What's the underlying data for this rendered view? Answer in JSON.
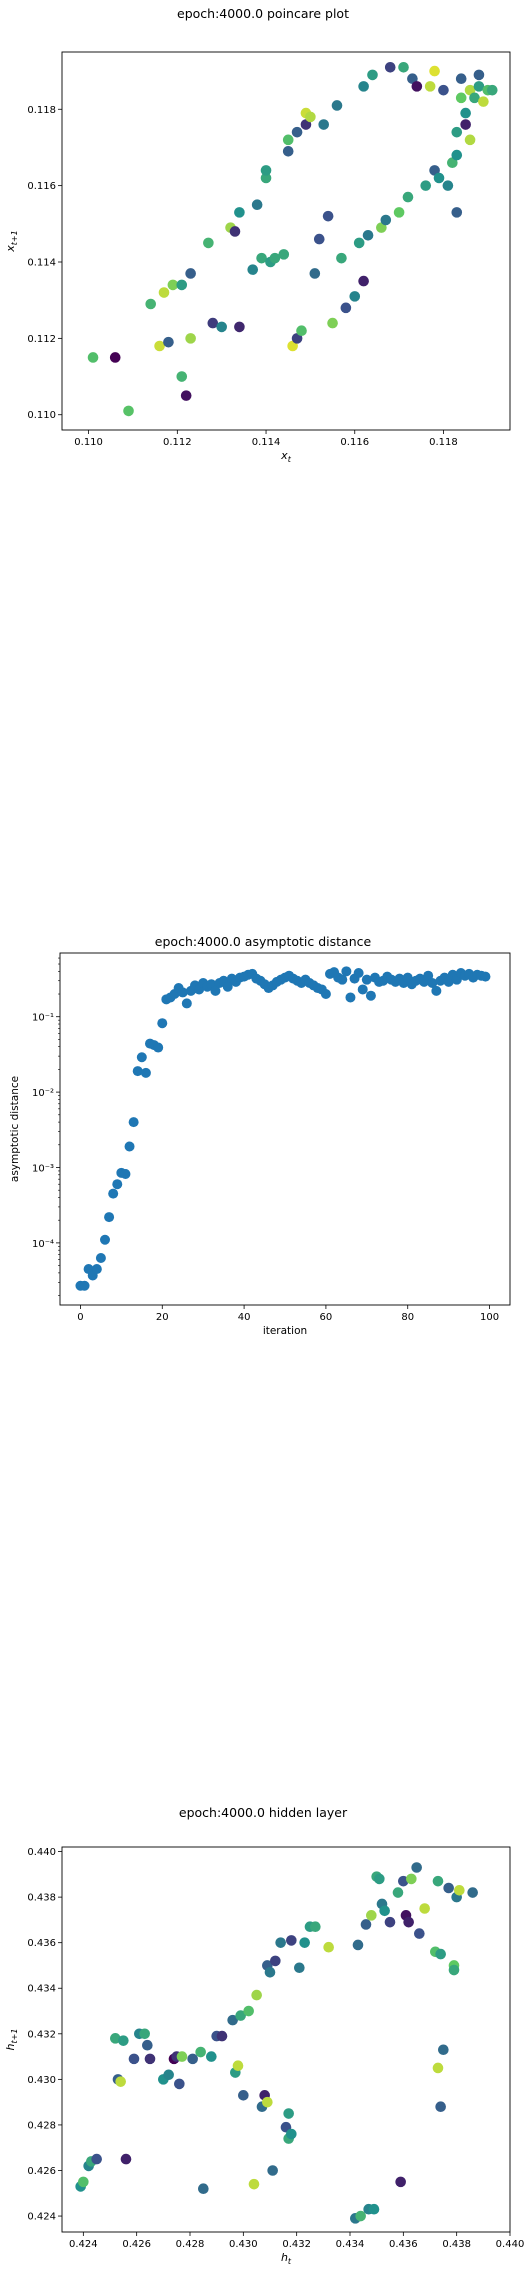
{
  "chart_data": [
    {
      "type": "scatter",
      "title": "epoch:4000.0 poincare plot",
      "xlabel": "x_t",
      "ylabel": "x_{t+1}",
      "xlim": [
        0.1094,
        0.1195
      ],
      "ylim": [
        0.1096,
        0.1195
      ],
      "xticks": [
        0.11,
        0.112,
        0.114,
        0.116,
        0.118
      ],
      "xtick_labels": [
        "0.110",
        "0.112",
        "0.114",
        "0.116",
        "0.118"
      ],
      "yticks": [
        0.11,
        0.112,
        0.114,
        0.116,
        0.118
      ],
      "ytick_labels": [
        "0.110",
        "0.112",
        "0.114",
        "0.116",
        "0.118"
      ],
      "colormap": "viridis",
      "colormap_stops": [
        "#440154",
        "#3b528b",
        "#21918c",
        "#5ec962",
        "#fde725"
      ],
      "points": [
        [
          0.1101,
          0.1115,
          0.7
        ],
        [
          0.1106,
          0.1115,
          0.0
        ],
        [
          0.1109,
          0.1101,
          0.72
        ],
        [
          0.1114,
          0.1129,
          0.65
        ],
        [
          0.1116,
          0.1118,
          0.92
        ],
        [
          0.1117,
          0.1132,
          0.9
        ],
        [
          0.1118,
          0.1119,
          0.3
        ],
        [
          0.1119,
          0.1134,
          0.8
        ],
        [
          0.1121,
          0.111,
          0.65
        ],
        [
          0.1122,
          0.1105,
          0.05
        ],
        [
          0.1121,
          0.1134,
          0.55
        ],
        [
          0.1123,
          0.112,
          0.85
        ],
        [
          0.1123,
          0.1137,
          0.3
        ],
        [
          0.1127,
          0.1145,
          0.65
        ],
        [
          0.1128,
          0.1124,
          0.18
        ],
        [
          0.113,
          0.1123,
          0.45
        ],
        [
          0.1132,
          0.1149,
          0.85
        ],
        [
          0.1133,
          0.1148,
          0.15
        ],
        [
          0.1134,
          0.1153,
          0.5
        ],
        [
          0.1134,
          0.1123,
          0.12
        ],
        [
          0.1137,
          0.1138,
          0.45
        ],
        [
          0.1138,
          0.1155,
          0.4
        ],
        [
          0.1139,
          0.1141,
          0.6
        ],
        [
          0.114,
          0.1162,
          0.6
        ],
        [
          0.114,
          0.1164,
          0.55
        ],
        [
          0.1141,
          0.114,
          0.55
        ],
        [
          0.1142,
          0.1141,
          0.6
        ],
        [
          0.1144,
          0.1142,
          0.6
        ],
        [
          0.1145,
          0.1172,
          0.7
        ],
        [
          0.1145,
          0.1169,
          0.3
        ],
        [
          0.1146,
          0.1118,
          0.95
        ],
        [
          0.1147,
          0.112,
          0.2
        ],
        [
          0.1147,
          0.1174,
          0.3
        ],
        [
          0.1148,
          0.1122,
          0.7
        ],
        [
          0.1149,
          0.1179,
          0.92
        ],
        [
          0.1149,
          0.1176,
          0.15
        ],
        [
          0.115,
          0.1178,
          0.88
        ],
        [
          0.1151,
          0.1137,
          0.35
        ],
        [
          0.1152,
          0.1146,
          0.25
        ],
        [
          0.1153,
          0.1176,
          0.4
        ],
        [
          0.1154,
          0.1152,
          0.25
        ],
        [
          0.1155,
          0.1124,
          0.8
        ],
        [
          0.1156,
          0.1181,
          0.4
        ],
        [
          0.1157,
          0.1141,
          0.6
        ],
        [
          0.1158,
          0.1128,
          0.25
        ],
        [
          0.116,
          0.1131,
          0.45
        ],
        [
          0.1161,
          0.1145,
          0.55
        ],
        [
          0.1162,
          0.1135,
          0.1
        ],
        [
          0.1162,
          0.1186,
          0.45
        ],
        [
          0.1163,
          0.1147,
          0.4
        ],
        [
          0.1164,
          0.1189,
          0.55
        ],
        [
          0.1166,
          0.1149,
          0.8
        ],
        [
          0.1167,
          0.1151,
          0.4
        ],
        [
          0.1168,
          0.1191,
          0.2
        ],
        [
          0.117,
          0.1153,
          0.75
        ],
        [
          0.1171,
          0.1191,
          0.6
        ],
        [
          0.1172,
          0.1157,
          0.6
        ],
        [
          0.1173,
          0.1188,
          0.3
        ],
        [
          0.1174,
          0.1186,
          0.05
        ],
        [
          0.1176,
          0.116,
          0.55
        ],
        [
          0.1177,
          0.1186,
          0.9
        ],
        [
          0.1178,
          0.119,
          0.95
        ],
        [
          0.1178,
          0.1164,
          0.3
        ],
        [
          0.1179,
          0.1162,
          0.5
        ],
        [
          0.118,
          0.1185,
          0.25
        ],
        [
          0.1181,
          0.116,
          0.45
        ],
        [
          0.1182,
          0.1166,
          0.65
        ],
        [
          0.1183,
          0.1153,
          0.3
        ],
        [
          0.1183,
          0.1168,
          0.5
        ],
        [
          0.1183,
          0.1174,
          0.55
        ],
        [
          0.1184,
          0.1183,
          0.75
        ],
        [
          0.1184,
          0.1188,
          0.3
        ],
        [
          0.1185,
          0.1179,
          0.5
        ],
        [
          0.1185,
          0.1176,
          0.1
        ],
        [
          0.1186,
          0.1185,
          0.88
        ],
        [
          0.1186,
          0.1172,
          0.88
        ],
        [
          0.1187,
          0.1183,
          0.6
        ],
        [
          0.1188,
          0.1189,
          0.3
        ],
        [
          0.1188,
          0.1186,
          0.55
        ],
        [
          0.1189,
          0.1182,
          0.9
        ],
        [
          0.119,
          0.1185,
          0.7
        ],
        [
          0.1191,
          0.1185,
          0.6
        ]
      ]
    },
    {
      "type": "scatter",
      "title": "epoch:4000.0 asymptotic distance",
      "xlabel": "iteration",
      "ylabel": "asymptotic distance",
      "xlim": [
        -5,
        105
      ],
      "yscale": "log",
      "ylim": [
        1.5e-05,
        0.7
      ],
      "xticks": [
        0,
        20,
        40,
        60,
        80,
        100
      ],
      "xtick_labels": [
        "0",
        "20",
        "40",
        "60",
        "80",
        "100"
      ],
      "yticks": [
        0.0001,
        0.001,
        0.01,
        0.1
      ],
      "ytick_labels": [
        "10⁻⁴",
        "10⁻³",
        "10⁻²",
        "10⁻¹"
      ],
      "color": "#1f77b4",
      "x": [
        0,
        1,
        2,
        3,
        4,
        5,
        6,
        7,
        8,
        9,
        10,
        11,
        12,
        13,
        14,
        15,
        16,
        17,
        18,
        19,
        20,
        21,
        22,
        23,
        24,
        25,
        26,
        27,
        28,
        29,
        30,
        31,
        32,
        33,
        34,
        35,
        36,
        37,
        38,
        39,
        40,
        41,
        42,
        43,
        44,
        45,
        46,
        47,
        48,
        49,
        50,
        51,
        52,
        53,
        54,
        55,
        56,
        57,
        58,
        59,
        60,
        61,
        62,
        63,
        64,
        65,
        66,
        67,
        68,
        69,
        70,
        71,
        72,
        73,
        74,
        75,
        76,
        77,
        78,
        79,
        80,
        81,
        82,
        83,
        84,
        85,
        86,
        87,
        88,
        89,
        90,
        91,
        92,
        93,
        94,
        95,
        96,
        97,
        98,
        99
      ],
      "y": [
        2.7e-05,
        2.7e-05,
        4.5e-05,
        3.7e-05,
        4.5e-05,
        6.3e-05,
        0.00011,
        0.00022,
        0.00045,
        0.0006,
        0.00085,
        0.00082,
        0.0019,
        0.004,
        0.019,
        0.029,
        0.018,
        0.044,
        0.042,
        0.039,
        0.082,
        0.17,
        0.18,
        0.2,
        0.24,
        0.21,
        0.15,
        0.22,
        0.26,
        0.23,
        0.28,
        0.25,
        0.27,
        0.22,
        0.28,
        0.3,
        0.25,
        0.32,
        0.29,
        0.33,
        0.34,
        0.36,
        0.37,
        0.32,
        0.3,
        0.27,
        0.24,
        0.26,
        0.29,
        0.31,
        0.33,
        0.35,
        0.32,
        0.3,
        0.28,
        0.31,
        0.28,
        0.26,
        0.24,
        0.23,
        0.2,
        0.37,
        0.39,
        0.33,
        0.31,
        0.4,
        0.18,
        0.32,
        0.38,
        0.23,
        0.31,
        0.19,
        0.33,
        0.29,
        0.3,
        0.34,
        0.31,
        0.29,
        0.32,
        0.28,
        0.33,
        0.27,
        0.3,
        0.32,
        0.29,
        0.35,
        0.28,
        0.22,
        0.3,
        0.33,
        0.29,
        0.36,
        0.31,
        0.38,
        0.35,
        0.37,
        0.33,
        0.36,
        0.35,
        0.34
      ]
    },
    {
      "type": "scatter",
      "title": "epoch:4000.0 hidden layer",
      "xlabel": "h_t",
      "ylabel": "h_{t+1}",
      "xlim": [
        0.4232,
        0.44
      ],
      "ylim": [
        0.4233,
        0.4402
      ],
      "xticks": [
        0.424,
        0.426,
        0.428,
        0.43,
        0.432,
        0.434,
        0.436,
        0.438,
        0.44
      ],
      "xtick_labels": [
        "0.424",
        "0.426",
        "0.428",
        "0.430",
        "0.432",
        "0.434",
        "0.436",
        "0.438",
        "0.440"
      ],
      "yticks": [
        0.424,
        0.426,
        0.428,
        0.43,
        0.432,
        0.434,
        0.436,
        0.438,
        0.44
      ],
      "ytick_labels": [
        "0.424",
        "0.426",
        "0.428",
        "0.430",
        "0.432",
        "0.434",
        "0.436",
        "0.438",
        "0.440"
      ],
      "colormap": "viridis",
      "colormap_stops": [
        "#440154",
        "#3b528b",
        "#21918c",
        "#5ec962",
        "#fde725"
      ],
      "points": [
        [
          0.4239,
          0.4253,
          0.5
        ],
        [
          0.424,
          0.4255,
          0.7
        ],
        [
          0.4242,
          0.4262,
          0.45
        ],
        [
          0.4243,
          0.4264,
          0.6
        ],
        [
          0.4245,
          0.4265,
          0.25
        ],
        [
          0.4252,
          0.4318,
          0.6
        ],
        [
          0.4253,
          0.43,
          0.3
        ],
        [
          0.4254,
          0.4299,
          0.9
        ],
        [
          0.4255,
          0.4317,
          0.55
        ],
        [
          0.4256,
          0.4265,
          0.1
        ],
        [
          0.4259,
          0.4309,
          0.25
        ],
        [
          0.4261,
          0.432,
          0.45
        ],
        [
          0.4263,
          0.432,
          0.6
        ],
        [
          0.4264,
          0.4315,
          0.3
        ],
        [
          0.4265,
          0.4309,
          0.15
        ],
        [
          0.427,
          0.43,
          0.5
        ],
        [
          0.4272,
          0.4302,
          0.45
        ],
        [
          0.4274,
          0.4309,
          0.0
        ],
        [
          0.4275,
          0.431,
          0.15
        ],
        [
          0.4276,
          0.4298,
          0.25
        ],
        [
          0.4277,
          0.431,
          0.8
        ],
        [
          0.4281,
          0.4309,
          0.3
        ],
        [
          0.4284,
          0.4312,
          0.65
        ],
        [
          0.4285,
          0.4252,
          0.35
        ],
        [
          0.4288,
          0.431,
          0.5
        ],
        [
          0.429,
          0.4319,
          0.25
        ],
        [
          0.4292,
          0.4319,
          0.15
        ],
        [
          0.4296,
          0.4326,
          0.35
        ],
        [
          0.4297,
          0.4303,
          0.55
        ],
        [
          0.4298,
          0.4306,
          0.9
        ],
        [
          0.4299,
          0.4328,
          0.6
        ],
        [
          0.43,
          0.4293,
          0.3
        ],
        [
          0.4302,
          0.433,
          0.7
        ],
        [
          0.4304,
          0.4254,
          0.9
        ],
        [
          0.4305,
          0.4337,
          0.85
        ],
        [
          0.4307,
          0.4288,
          0.35
        ],
        [
          0.4308,
          0.4293,
          0.1
        ],
        [
          0.4309,
          0.429,
          0.9
        ],
        [
          0.4309,
          0.435,
          0.3
        ],
        [
          0.431,
          0.4347,
          0.4
        ],
        [
          0.4311,
          0.426,
          0.35
        ],
        [
          0.4312,
          0.4352,
          0.2
        ],
        [
          0.4314,
          0.436,
          0.4
        ],
        [
          0.4316,
          0.4279,
          0.25
        ],
        [
          0.4317,
          0.4285,
          0.55
        ],
        [
          0.4317,
          0.4274,
          0.6
        ],
        [
          0.4318,
          0.4361,
          0.2
        ],
        [
          0.4318,
          0.4276,
          0.5
        ],
        [
          0.4321,
          0.4349,
          0.4
        ],
        [
          0.4323,
          0.436,
          0.5
        ],
        [
          0.4325,
          0.4367,
          0.55
        ],
        [
          0.4327,
          0.4367,
          0.6
        ],
        [
          0.4332,
          0.4358,
          0.9
        ],
        [
          0.4342,
          0.4239,
          0.4
        ],
        [
          0.4343,
          0.4359,
          0.35
        ],
        [
          0.4344,
          0.424,
          0.65
        ],
        [
          0.4346,
          0.4368,
          0.3
        ],
        [
          0.4347,
          0.4243,
          0.45
        ],
        [
          0.4348,
          0.4372,
          0.85
        ],
        [
          0.4349,
          0.4243,
          0.5
        ],
        [
          0.435,
          0.4389,
          0.6
        ],
        [
          0.4351,
          0.4388,
          0.55
        ],
        [
          0.4352,
          0.4377,
          0.4
        ],
        [
          0.4353,
          0.4374,
          0.5
        ],
        [
          0.4355,
          0.4369,
          0.2
        ],
        [
          0.4358,
          0.4382,
          0.6
        ],
        [
          0.4359,
          0.4255,
          0.1
        ],
        [
          0.436,
          0.4387,
          0.25
        ],
        [
          0.4361,
          0.4372,
          0.05
        ],
        [
          0.4362,
          0.4369,
          0.1
        ],
        [
          0.4363,
          0.4388,
          0.8
        ],
        [
          0.4365,
          0.4393,
          0.35
        ],
        [
          0.4366,
          0.4364,
          0.25
        ],
        [
          0.4368,
          0.4375,
          0.9
        ],
        [
          0.4372,
          0.4356,
          0.7
        ],
        [
          0.4373,
          0.4387,
          0.6
        ],
        [
          0.4374,
          0.4355,
          0.55
        ],
        [
          0.4373,
          0.4305,
          0.9
        ],
        [
          0.4374,
          0.4288,
          0.3
        ],
        [
          0.4375,
          0.4313,
          0.35
        ],
        [
          0.4377,
          0.4384,
          0.3
        ],
        [
          0.4379,
          0.435,
          0.75
        ],
        [
          0.4379,
          0.4348,
          0.6
        ],
        [
          0.438,
          0.438,
          0.4
        ],
        [
          0.4381,
          0.4383,
          0.9
        ],
        [
          0.4386,
          0.4382,
          0.35
        ]
      ]
    }
  ]
}
